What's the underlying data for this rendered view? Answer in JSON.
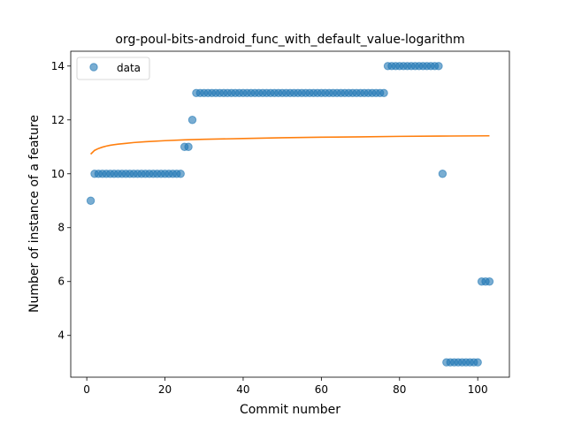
{
  "chart_data": {
    "type": "scatter",
    "title": "org-poul-bits-android_func_with_default_value-logarithm",
    "xlabel": "Commit number",
    "ylabel": "Number of instance of a feature",
    "xlim": [
      -4.1,
      108.1
    ],
    "ylim": [
      2.45,
      14.55
    ],
    "xticks": [
      0,
      20,
      40,
      60,
      80,
      100
    ],
    "yticks": [
      4,
      6,
      8,
      10,
      12,
      14
    ],
    "grid": false,
    "legend_position": "top-left",
    "series": [
      {
        "name": "data",
        "kind": "scatter",
        "color": "#1f77b4",
        "opacity": 0.6,
        "x": [
          1,
          2,
          3,
          4,
          5,
          6,
          7,
          8,
          9,
          10,
          11,
          12,
          13,
          14,
          15,
          16,
          17,
          18,
          19,
          20,
          21,
          22,
          23,
          24,
          25,
          26,
          27,
          28,
          29,
          30,
          31,
          32,
          33,
          34,
          35,
          36,
          37,
          38,
          39,
          40,
          41,
          42,
          43,
          44,
          45,
          46,
          47,
          48,
          49,
          50,
          51,
          52,
          53,
          54,
          55,
          56,
          57,
          58,
          59,
          60,
          61,
          62,
          63,
          64,
          65,
          66,
          67,
          68,
          69,
          70,
          71,
          72,
          73,
          74,
          75,
          76,
          77,
          78,
          79,
          80,
          81,
          82,
          83,
          84,
          85,
          86,
          87,
          88,
          89,
          90,
          91,
          92,
          93,
          94,
          95,
          96,
          97,
          98,
          99,
          100,
          101,
          102,
          103
        ],
        "y": [
          9,
          10,
          10,
          10,
          10,
          10,
          10,
          10,
          10,
          10,
          10,
          10,
          10,
          10,
          10,
          10,
          10,
          10,
          10,
          10,
          10,
          10,
          10,
          10,
          11,
          11,
          12,
          13,
          13,
          13,
          13,
          13,
          13,
          13,
          13,
          13,
          13,
          13,
          13,
          13,
          13,
          13,
          13,
          13,
          13,
          13,
          13,
          13,
          13,
          13,
          13,
          13,
          13,
          13,
          13,
          13,
          13,
          13,
          13,
          13,
          13,
          13,
          13,
          13,
          13,
          13,
          13,
          13,
          13,
          13,
          13,
          13,
          13,
          13,
          13,
          13,
          14,
          14,
          14,
          14,
          14,
          14,
          14,
          14,
          14,
          14,
          14,
          14,
          14,
          14,
          10,
          3,
          3,
          3,
          3,
          3,
          3,
          3,
          3,
          3,
          6,
          6,
          6
        ]
      },
      {
        "kind": "line",
        "color": "#ff7f0e",
        "x": [
          1,
          2,
          3,
          4,
          5,
          6,
          8,
          10,
          12,
          15,
          20,
          25,
          30,
          40,
          50,
          60,
          70,
          80,
          90,
          103
        ],
        "y": [
          10.73,
          10.87,
          10.94,
          10.99,
          11.03,
          11.06,
          11.1,
          11.13,
          11.16,
          11.19,
          11.23,
          11.26,
          11.28,
          11.31,
          11.34,
          11.36,
          11.37,
          11.39,
          11.4,
          11.41
        ]
      }
    ]
  }
}
